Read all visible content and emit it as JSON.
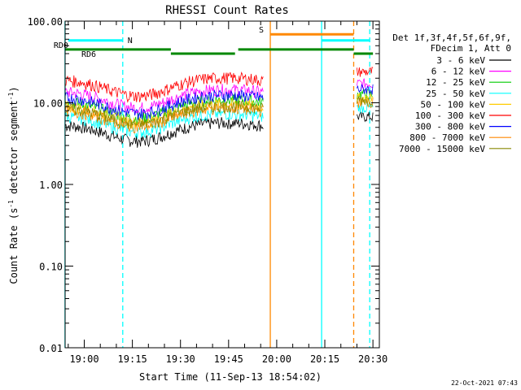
{
  "chart_data": {
    "type": "line",
    "title": "RHESSI Count Rates",
    "xlabel": "Start Time (11-Sep-13 18:54:02)",
    "ylabel_main": "Count Rate (s",
    "ylabel_sup1": "-1",
    "ylabel_mid": " detector segment",
    "ylabel_sup2": "-1",
    "ylabel_end": ")",
    "y_scale": "log",
    "ylim": [
      0.01,
      100
    ],
    "xlim": [
      "18:54:02",
      "20:32:00"
    ],
    "x_ticks": [
      "19:00",
      "19:15",
      "19:30",
      "19:45",
      "20:00",
      "20:15",
      "20:30"
    ],
    "y_ticks": [
      "0.01",
      "0.10",
      "1.00",
      "10.00",
      "100.00"
    ],
    "grid": false,
    "legend_header": [
      "Det 1f,3f,4f,5f,6f,9f,",
      "FDecim 1, Att 0"
    ],
    "series": [
      {
        "name": "3 - 6 keV",
        "color": "#000000",
        "level": 4.5
      },
      {
        "name": "6 - 12 keV",
        "color": "#ff00ff",
        "level": 11.5
      },
      {
        "name": "12 - 25 keV",
        "color": "#00cc00",
        "level": 8.6
      },
      {
        "name": "25 - 50 keV",
        "color": "#00ffff",
        "level": 5.8
      },
      {
        "name": "50 - 100 keV",
        "color": "#ffcc00",
        "level": 7.6
      },
      {
        "name": "100 - 300 keV",
        "color": "#ff0000",
        "level": 16.0
      },
      {
        "name": "300 - 800 keV",
        "color": "#0000ff",
        "level": 9.8
      },
      {
        "name": "800 - 7000 keV",
        "color": "#ff8800",
        "level": 6.8
      },
      {
        "name": "7000 - 15000 keV",
        "color": "#888800",
        "level": 7.2
      }
    ],
    "bars": [
      {
        "label": "N",
        "color": "#00ffff",
        "y": 58,
        "start": "18:55",
        "end": "19:12"
      },
      {
        "label": "",
        "color": "#00ffff",
        "y": 58,
        "start": "20:14",
        "end": "20:29"
      },
      {
        "label": "S",
        "color": "#ff8800",
        "y": 69,
        "start": "19:58",
        "end": "20:24"
      },
      {
        "label": "RD0",
        "color": "#008800",
        "y": 45,
        "start": "18:54",
        "end": "19:27"
      },
      {
        "label": "",
        "color": "#008800",
        "y": 45,
        "start": "19:48",
        "end": "20:24"
      },
      {
        "label": "RD6",
        "color": "#008800",
        "y": 40,
        "start": "19:27",
        "end": "19:47"
      },
      {
        "label": "",
        "color": "#008800",
        "y": 40,
        "start": "20:24",
        "end": "20:30"
      }
    ],
    "vlines": [
      {
        "time": "18:54",
        "color": "#00ffff",
        "style": "solid"
      },
      {
        "time": "19:12",
        "color": "#00ffff",
        "style": "dashed"
      },
      {
        "time": "19:58",
        "color": "#ff8800",
        "style": "solid"
      },
      {
        "time": "20:14",
        "color": "#00ffff",
        "style": "solid"
      },
      {
        "time": "20:24",
        "color": "#ff8800",
        "style": "dashed"
      },
      {
        "time": "20:29",
        "color": "#00ffff",
        "style": "dashed"
      }
    ],
    "data_gap": [
      "19:56",
      "20:25"
    ]
  },
  "footer": {
    "timestamp": "22-Oct-2021 07:43"
  }
}
